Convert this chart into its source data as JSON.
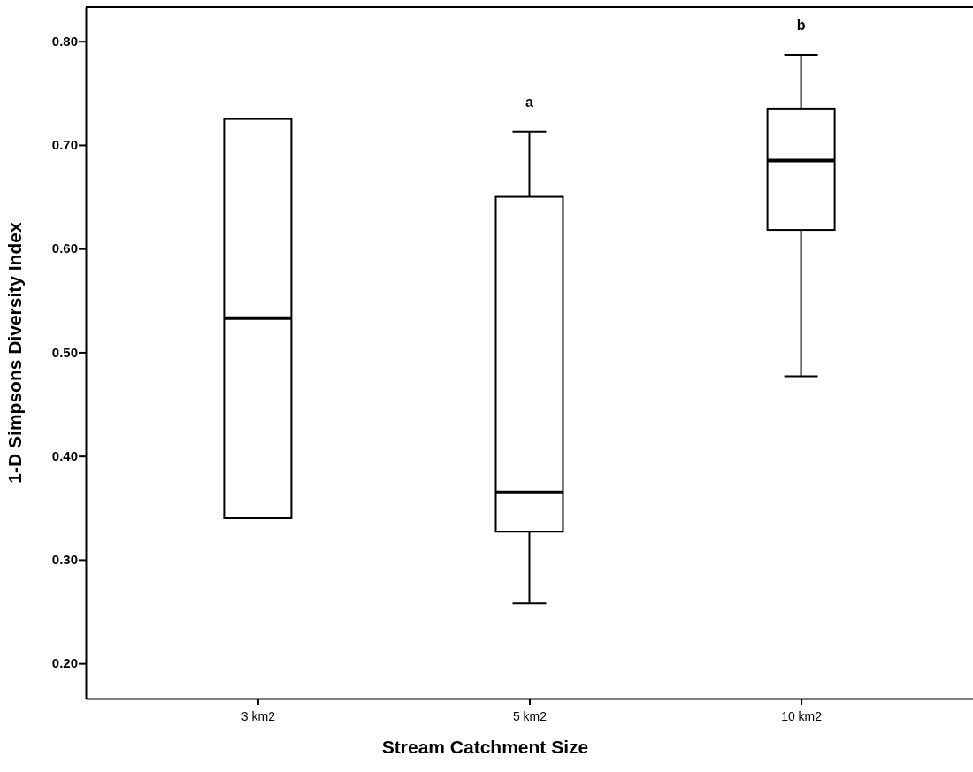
{
  "chart_data": {
    "type": "box",
    "xlabel": "Stream Catchment Size",
    "ylabel": "1-D Simpsons Diversity Index",
    "categories": [
      "3 km2",
      "5 km2",
      "10 km2"
    ],
    "boxes": [
      {
        "low": 0.34,
        "q1": 0.34,
        "median": 0.533,
        "q3": 0.725,
        "high": 0.725
      },
      {
        "low": 0.258,
        "q1": 0.327,
        "median": 0.365,
        "q3": 0.65,
        "high": 0.713
      },
      {
        "low": 0.477,
        "q1": 0.618,
        "median": 0.685,
        "q3": 0.735,
        "high": 0.787
      }
    ],
    "ylim": [
      0.166,
      0.833
    ],
    "yticks": [
      {
        "value": 0.2,
        "label": "0.20"
      },
      {
        "value": 0.3,
        "label": "0.30"
      },
      {
        "value": 0.4,
        "label": "0.40"
      },
      {
        "value": 0.5,
        "label": "0.50"
      },
      {
        "value": 0.6,
        "label": "0.60"
      },
      {
        "value": 0.7,
        "label": "0.70"
      },
      {
        "value": 0.8,
        "label": "0.80"
      }
    ],
    "annotations": [
      "a",
      "b"
    ],
    "grid": false
  }
}
